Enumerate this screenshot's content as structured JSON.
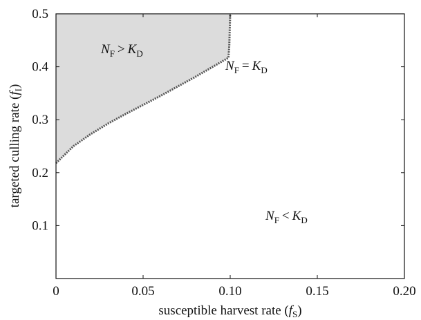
{
  "chart_data": {
    "type": "area",
    "title": "",
    "xlabel": {
      "text": "susceptible harvest rate (",
      "var": "f",
      "sub": "S",
      "close": ")"
    },
    "ylabel": {
      "text": "targeted culling rate (",
      "var": "f",
      "sub": "I",
      "close": ")"
    },
    "xlim": [
      0,
      0.2
    ],
    "ylim": [
      0,
      0.5
    ],
    "xticks": [
      0,
      0.05,
      0.1,
      0.15,
      0.2
    ],
    "xtick_labels": [
      "0",
      "0.05",
      "0.10",
      "0.15",
      "0.20"
    ],
    "yticks": [
      0.1,
      0.2,
      0.3,
      0.4,
      0.5
    ],
    "ytick_labels": [
      "0.1",
      "0.2",
      "0.3",
      "0.4",
      "0.5"
    ],
    "grid": false,
    "boundary": {
      "name": "N_F = K_D",
      "x": [
        0,
        0.01,
        0.02,
        0.03,
        0.04,
        0.05,
        0.06,
        0.07,
        0.08,
        0.09,
        0.099,
        0.0995,
        0.1
      ],
      "y": [
        0.218,
        0.25,
        0.273,
        0.293,
        0.311,
        0.328,
        0.345,
        0.363,
        0.381,
        0.4,
        0.417,
        0.44,
        0.5
      ]
    },
    "shaded_color": "#dcdcdc",
    "boundary_color": "#555555",
    "regions": [
      {
        "N": "N",
        "Nsub": "F",
        "op": ">",
        "K": "K",
        "Ksub": "D",
        "shaded": true
      },
      {
        "N": "N",
        "Nsub": "F",
        "op": "=",
        "K": "K",
        "Ksub": "D",
        "shaded": false
      },
      {
        "N": "N",
        "Nsub": "F",
        "op": "<",
        "K": "K",
        "Ksub": "D",
        "shaded": false
      }
    ]
  }
}
